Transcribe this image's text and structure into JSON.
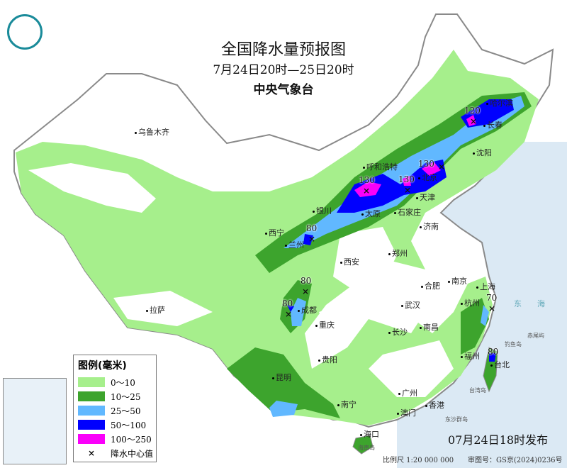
{
  "header": {
    "title": "全国降水量预报图",
    "period": "7月24日20时—25日20时",
    "issuer": "中央气象台"
  },
  "legend": {
    "title": "图例(毫米)",
    "items": [
      {
        "label": "0～10",
        "color": "#a6ef8c"
      },
      {
        "label": "10～25",
        "color": "#3da42d"
      },
      {
        "label": "25～50",
        "color": "#61b8ff"
      },
      {
        "label": "50～100",
        "color": "#0000fe"
      },
      {
        "label": "100～250",
        "color": "#fa00fa"
      }
    ],
    "center_label": "降水中心值",
    "center_symbol": "×"
  },
  "cities": [
    "乌鲁木齐",
    "哈尔滨",
    "长春",
    "沈阳",
    "呼和浩特",
    "北京",
    "天津",
    "石家庄",
    "太原",
    "济南",
    "银川",
    "西宁",
    "兰州",
    "郑州",
    "西安",
    "合肥",
    "南京",
    "上海",
    "杭州",
    "武汉",
    "成都",
    "重庆",
    "拉萨",
    "长沙",
    "南昌",
    "贵阳",
    "昆明",
    "福州",
    "台北",
    "南宁",
    "广州",
    "澳门",
    "香港",
    "海口"
  ],
  "sea_labels": [
    "东",
    "海",
    "台湾岛",
    "东沙群岛",
    "钓鱼岛",
    "赤尾屿",
    "海南岛"
  ],
  "precip_centers": [
    120,
    130,
    130,
    130,
    80,
    80,
    80,
    70,
    80
  ],
  "footer": {
    "issued": "07月24日18时发布",
    "scale": "比例尺 1:20 000 000",
    "approval": "审图号：GS京(2024)0236号"
  },
  "colors": {
    "sea": "#dbe9f4",
    "land": "#ffffff",
    "border": "#999999"
  }
}
